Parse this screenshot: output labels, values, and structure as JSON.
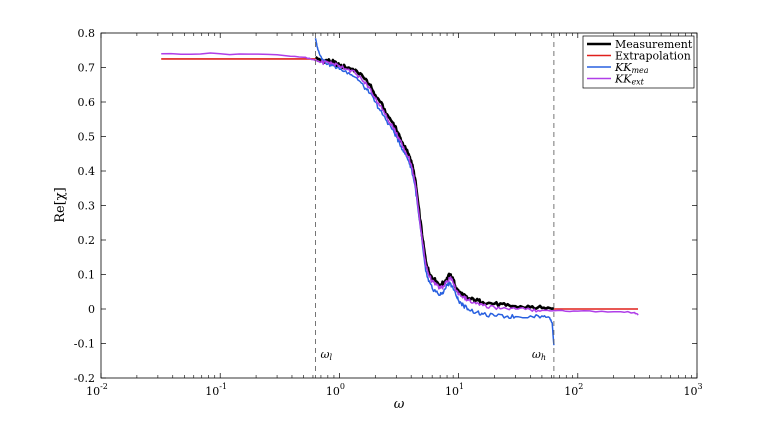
{
  "chart_data": {
    "type": "line",
    "title": "",
    "xlabel": "ω",
    "ylabel": "Re[χ]",
    "xscale": "log",
    "xlim": [
      0.01,
      1000
    ],
    "ylim": [
      -0.2,
      0.8
    ],
    "grid": false,
    "legend_position": "top-right",
    "x_ticks": [
      {
        "value": 0.01,
        "base": "10",
        "exp": "-2"
      },
      {
        "value": 0.1,
        "base": "10",
        "exp": "-1"
      },
      {
        "value": 1,
        "base": "10",
        "exp": "0"
      },
      {
        "value": 10,
        "base": "10",
        "exp": "1"
      },
      {
        "value": 100,
        "base": "10",
        "exp": "2"
      },
      {
        "value": 1000,
        "base": "10",
        "exp": "3"
      }
    ],
    "y_ticks": [
      "-0.2",
      "-0.1",
      "0",
      "0.1",
      "0.2",
      "0.3",
      "0.4",
      "0.5",
      "0.6",
      "0.7",
      "0.8"
    ],
    "vlines": [
      {
        "x": 0.63,
        "label_base": "ω",
        "label_sub": "l"
      },
      {
        "x": 63,
        "label_base": "ω",
        "label_sub": "h"
      }
    ],
    "series": [
      {
        "name": "Measurement",
        "name_sub": "",
        "color": "#000000",
        "width": 2.6,
        "x": [
          0.63,
          0.7,
          0.8,
          0.9,
          1.0,
          1.2,
          1.4,
          1.6,
          1.8,
          2.0,
          2.2,
          2.5,
          2.8,
          3.0,
          3.2,
          3.5,
          3.8,
          4.0,
          4.3,
          4.6,
          5.0,
          5.3,
          5.6,
          6.0,
          6.5,
          7.0,
          7.5,
          8.0,
          8.5,
          9.0,
          9.5,
          10.0,
          11,
          12,
          14,
          16,
          20,
          25,
          30,
          40,
          50,
          63
        ],
        "y": [
          0.73,
          0.72,
          0.72,
          0.715,
          0.705,
          0.7,
          0.69,
          0.67,
          0.65,
          0.62,
          0.6,
          0.565,
          0.54,
          0.52,
          0.5,
          0.47,
          0.45,
          0.43,
          0.38,
          0.3,
          0.2,
          0.14,
          0.11,
          0.09,
          0.08,
          0.07,
          0.075,
          0.09,
          0.1,
          0.085,
          0.06,
          0.05,
          0.04,
          0.03,
          0.025,
          0.02,
          0.015,
          0.01,
          0.008,
          0.005,
          0.003,
          0.002
        ]
      },
      {
        "name": "Extrapolation",
        "name_sub": "",
        "color": "#e0201c",
        "width": 1.6,
        "x": [
          0.032,
          0.1,
          0.3,
          0.63,
          63,
          100,
          200,
          320
        ],
        "y": [
          0.725,
          0.725,
          0.725,
          0.725,
          0.0,
          0.0,
          0.0,
          0.0
        ]
      },
      {
        "name": "KK",
        "name_sub": "mea",
        "color": "#2860e0",
        "width": 1.5,
        "x": [
          0.63,
          0.65,
          0.68,
          0.72,
          0.8,
          0.9,
          1.0,
          1.2,
          1.4,
          1.6,
          1.8,
          2.0,
          2.2,
          2.5,
          2.8,
          3.0,
          3.2,
          3.5,
          3.8,
          4.0,
          4.3,
          4.6,
          5.0,
          5.3,
          5.6,
          6.0,
          6.5,
          7.0,
          7.5,
          8.0,
          8.5,
          9.0,
          9.5,
          10.0,
          11,
          12,
          14,
          16,
          20,
          25,
          30,
          40,
          50,
          58,
          61,
          63
        ],
        "y": [
          0.785,
          0.76,
          0.74,
          0.725,
          0.71,
          0.705,
          0.695,
          0.685,
          0.67,
          0.645,
          0.625,
          0.6,
          0.575,
          0.545,
          0.52,
          0.5,
          0.48,
          0.455,
          0.43,
          0.41,
          0.36,
          0.28,
          0.18,
          0.11,
          0.08,
          0.06,
          0.05,
          0.04,
          0.05,
          0.07,
          0.075,
          0.06,
          0.04,
          0.025,
          0.01,
          0.0,
          -0.01,
          -0.015,
          -0.02,
          -0.022,
          -0.022,
          -0.02,
          -0.02,
          -0.025,
          -0.04,
          -0.105
        ]
      },
      {
        "name": "KK",
        "name_sub": "ext",
        "color": "#b03ee8",
        "width": 1.5,
        "x": [
          0.032,
          0.1,
          0.3,
          0.5,
          0.63,
          0.7,
          0.8,
          0.9,
          1.0,
          1.2,
          1.4,
          1.6,
          1.8,
          2.0,
          2.2,
          2.5,
          2.8,
          3.0,
          3.2,
          3.5,
          3.8,
          4.0,
          4.3,
          4.6,
          5.0,
          5.3,
          5.6,
          6.0,
          6.5,
          7.0,
          7.5,
          8.0,
          8.5,
          9.0,
          9.5,
          10.0,
          11,
          12,
          14,
          16,
          20,
          25,
          30,
          40,
          50,
          63,
          100,
          200,
          300,
          320
        ],
        "y": [
          0.74,
          0.74,
          0.737,
          0.73,
          0.72,
          0.715,
          0.715,
          0.71,
          0.705,
          0.695,
          0.68,
          0.66,
          0.64,
          0.61,
          0.59,
          0.555,
          0.53,
          0.51,
          0.49,
          0.46,
          0.44,
          0.42,
          0.37,
          0.29,
          0.19,
          0.13,
          0.1,
          0.08,
          0.07,
          0.06,
          0.065,
          0.08,
          0.09,
          0.075,
          0.055,
          0.045,
          0.035,
          0.025,
          0.015,
          0.01,
          0.005,
          0.002,
          0.0,
          -0.002,
          -0.004,
          -0.005,
          -0.006,
          -0.008,
          -0.01,
          -0.018
        ]
      }
    ]
  }
}
